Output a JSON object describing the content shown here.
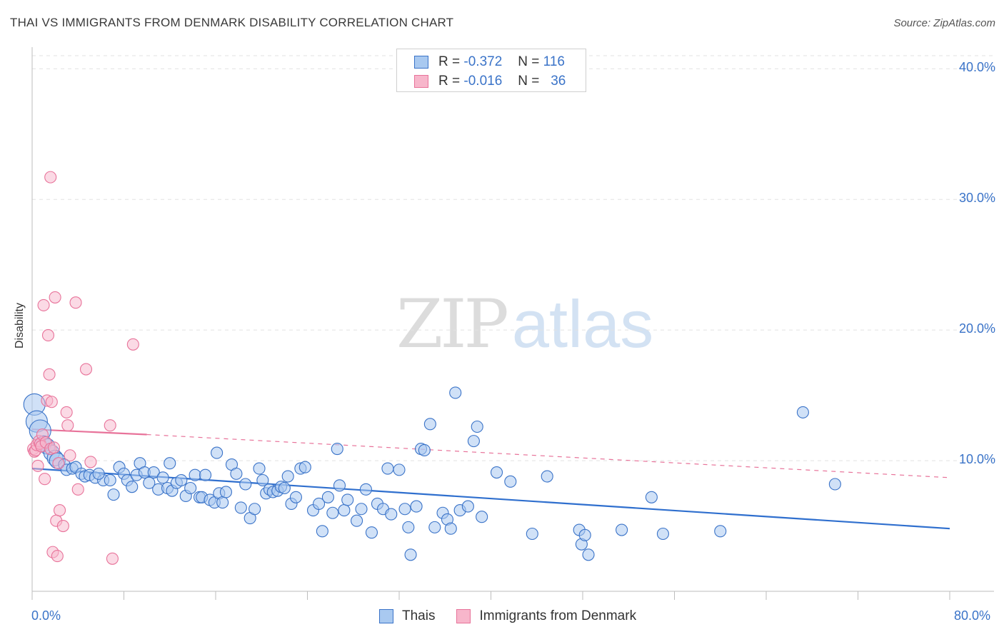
{
  "header": {
    "title": "THAI VS IMMIGRANTS FROM DENMARK DISABILITY CORRELATION CHART",
    "source": "Source: ZipAtlas.com"
  },
  "legend": {
    "rows": [
      {
        "r_label": "R =",
        "r_value": "-0.372",
        "n_label": "N =",
        "n_value": "116",
        "color": "#a9c9f0"
      },
      {
        "r_label": "R =",
        "r_value": "-0.016",
        "n_label": "N =",
        "n_value": "36",
        "color": "#f7b6cb"
      }
    ]
  },
  "bottom_legend": {
    "items": [
      {
        "label": "Thais",
        "color": "#a9c9f0"
      },
      {
        "label": "Immigrants from Denmark",
        "color": "#f7b6cb"
      }
    ]
  },
  "watermark": {
    "zip": "ZIP",
    "atlas": "atlas"
  },
  "chart_data": {
    "type": "scatter",
    "title": "THAI VS IMMIGRANTS FROM DENMARK DISABILITY CORRELATION CHART",
    "xlabel": "",
    "ylabel": "Disability",
    "xlim": [
      0,
      80
    ],
    "ylim": [
      0,
      41
    ],
    "x_tick_labels": [
      "0.0%",
      "80.0%"
    ],
    "y_ticks": [
      10,
      20,
      30,
      40
    ],
    "y_tick_labels": [
      "10.0%",
      "20.0%",
      "30.0%",
      "40.0%"
    ],
    "grid": true,
    "legend_position": "top-center",
    "series": [
      {
        "name": "Thais",
        "color": "#3a73c8",
        "fill": "#a9c9f0",
        "r": -0.372,
        "n": 116,
        "trend": {
          "x": [
            0,
            80
          ],
          "y": [
            9.4,
            4.8
          ],
          "style": "solid"
        },
        "points": [
          [
            0.2,
            14.3
          ],
          [
            0.4,
            13.0
          ],
          [
            0.7,
            12.3
          ],
          [
            1.0,
            11.3
          ],
          [
            1.3,
            11.1
          ],
          [
            1.7,
            10.6
          ],
          [
            2.0,
            10.2
          ],
          [
            2.2,
            10.0
          ],
          [
            2.8,
            9.7
          ],
          [
            3.0,
            9.3
          ],
          [
            3.5,
            9.4
          ],
          [
            3.8,
            9.5
          ],
          [
            4.3,
            9.0
          ],
          [
            4.6,
            8.8
          ],
          [
            5.0,
            8.9
          ],
          [
            5.5,
            8.7
          ],
          [
            6.2,
            8.5
          ],
          [
            6.8,
            8.5
          ],
          [
            7.1,
            7.4
          ],
          [
            7.6,
            9.5
          ],
          [
            8.0,
            9.0
          ],
          [
            8.3,
            8.5
          ],
          [
            8.7,
            8.0
          ],
          [
            9.1,
            8.9
          ],
          [
            9.4,
            9.8
          ],
          [
            9.8,
            9.1
          ],
          [
            10.2,
            8.3
          ],
          [
            10.6,
            9.1
          ],
          [
            11.0,
            7.8
          ],
          [
            11.4,
            8.7
          ],
          [
            11.8,
            7.9
          ],
          [
            12.2,
            7.7
          ],
          [
            12.6,
            8.3
          ],
          [
            13.0,
            8.5
          ],
          [
            13.4,
            7.3
          ],
          [
            13.8,
            7.9
          ],
          [
            14.2,
            8.9
          ],
          [
            14.6,
            7.2
          ],
          [
            14.8,
            7.2
          ],
          [
            15.1,
            8.9
          ],
          [
            15.5,
            7.0
          ],
          [
            15.9,
            6.8
          ],
          [
            16.3,
            7.5
          ],
          [
            16.6,
            6.8
          ],
          [
            16.9,
            7.6
          ],
          [
            17.4,
            9.7
          ],
          [
            17.8,
            9.0
          ],
          [
            18.2,
            6.4
          ],
          [
            18.6,
            8.2
          ],
          [
            19.0,
            5.6
          ],
          [
            19.4,
            6.3
          ],
          [
            19.8,
            9.4
          ],
          [
            20.1,
            8.5
          ],
          [
            20.4,
            7.5
          ],
          [
            20.7,
            7.8
          ],
          [
            21.0,
            7.6
          ],
          [
            21.4,
            7.7
          ],
          [
            21.7,
            8.0
          ],
          [
            22.0,
            7.9
          ],
          [
            22.3,
            8.8
          ],
          [
            22.6,
            6.7
          ],
          [
            23.0,
            7.2
          ],
          [
            23.4,
            9.4
          ],
          [
            23.8,
            9.5
          ],
          [
            24.5,
            6.2
          ],
          [
            25.0,
            6.7
          ],
          [
            25.3,
            4.6
          ],
          [
            25.8,
            7.2
          ],
          [
            26.2,
            6.0
          ],
          [
            26.6,
            10.9
          ],
          [
            26.8,
            8.1
          ],
          [
            27.2,
            6.2
          ],
          [
            27.5,
            7.0
          ],
          [
            28.3,
            5.4
          ],
          [
            28.7,
            6.3
          ],
          [
            29.1,
            7.8
          ],
          [
            29.6,
            4.5
          ],
          [
            30.1,
            6.7
          ],
          [
            30.6,
            6.3
          ],
          [
            31.0,
            9.4
          ],
          [
            31.3,
            5.9
          ],
          [
            32.0,
            9.3
          ],
          [
            32.5,
            6.3
          ],
          [
            32.8,
            4.9
          ],
          [
            33.0,
            2.8
          ],
          [
            33.5,
            6.5
          ],
          [
            33.9,
            10.9
          ],
          [
            34.2,
            10.8
          ],
          [
            34.7,
            12.8
          ],
          [
            35.1,
            4.9
          ],
          [
            35.8,
            6.0
          ],
          [
            36.2,
            5.5
          ],
          [
            36.5,
            4.8
          ],
          [
            36.9,
            15.2
          ],
          [
            37.3,
            6.2
          ],
          [
            38.0,
            6.5
          ],
          [
            38.5,
            11.5
          ],
          [
            38.8,
            12.6
          ],
          [
            39.2,
            5.7
          ],
          [
            41.7,
            8.4
          ],
          [
            43.6,
            4.4
          ],
          [
            44.9,
            8.8
          ],
          [
            47.7,
            4.7
          ],
          [
            47.9,
            3.6
          ],
          [
            48.2,
            4.3
          ],
          [
            48.5,
            2.8
          ],
          [
            51.4,
            4.7
          ],
          [
            54.0,
            7.2
          ],
          [
            55.0,
            4.4
          ],
          [
            67.2,
            13.7
          ],
          [
            70.0,
            8.2
          ],
          [
            5.8,
            9.0
          ],
          [
            12.0,
            9.8
          ],
          [
            16.1,
            10.6
          ],
          [
            40.5,
            9.1
          ],
          [
            60.0,
            4.6
          ]
        ]
      },
      {
        "name": "Immigrants from Denmark",
        "color": "#e8739a",
        "fill": "#f7b6cb",
        "r": -0.016,
        "n": 36,
        "trend": {
          "x_solid": [
            0,
            10
          ],
          "y_solid": [
            12.4,
            12.0
          ],
          "x_dashed": [
            10,
            80
          ],
          "y_dashed": [
            12.0,
            8.7
          ]
        },
        "points": [
          [
            0.1,
            10.9
          ],
          [
            0.2,
            10.7
          ],
          [
            0.3,
            10.8
          ],
          [
            0.4,
            11.2
          ],
          [
            0.5,
            9.6
          ],
          [
            0.6,
            11.5
          ],
          [
            0.7,
            11.3
          ],
          [
            0.8,
            11.1
          ],
          [
            0.9,
            12.0
          ],
          [
            1.0,
            21.9
          ],
          [
            1.1,
            8.6
          ],
          [
            1.2,
            11.4
          ],
          [
            1.3,
            14.6
          ],
          [
            1.4,
            19.6
          ],
          [
            1.5,
            16.6
          ],
          [
            1.6,
            31.7
          ],
          [
            1.6,
            10.9
          ],
          [
            1.7,
            14.5
          ],
          [
            1.8,
            3.0
          ],
          [
            1.9,
            11.0
          ],
          [
            2.0,
            22.5
          ],
          [
            2.1,
            5.4
          ],
          [
            2.2,
            2.7
          ],
          [
            2.3,
            9.8
          ],
          [
            2.4,
            6.2
          ],
          [
            2.7,
            5.0
          ],
          [
            3.0,
            13.7
          ],
          [
            3.1,
            12.7
          ],
          [
            3.3,
            10.4
          ],
          [
            3.8,
            22.1
          ],
          [
            4.0,
            7.8
          ],
          [
            4.7,
            17.0
          ],
          [
            5.1,
            9.9
          ],
          [
            6.8,
            12.7
          ],
          [
            7.0,
            2.5
          ],
          [
            8.8,
            18.9
          ]
        ]
      }
    ]
  }
}
